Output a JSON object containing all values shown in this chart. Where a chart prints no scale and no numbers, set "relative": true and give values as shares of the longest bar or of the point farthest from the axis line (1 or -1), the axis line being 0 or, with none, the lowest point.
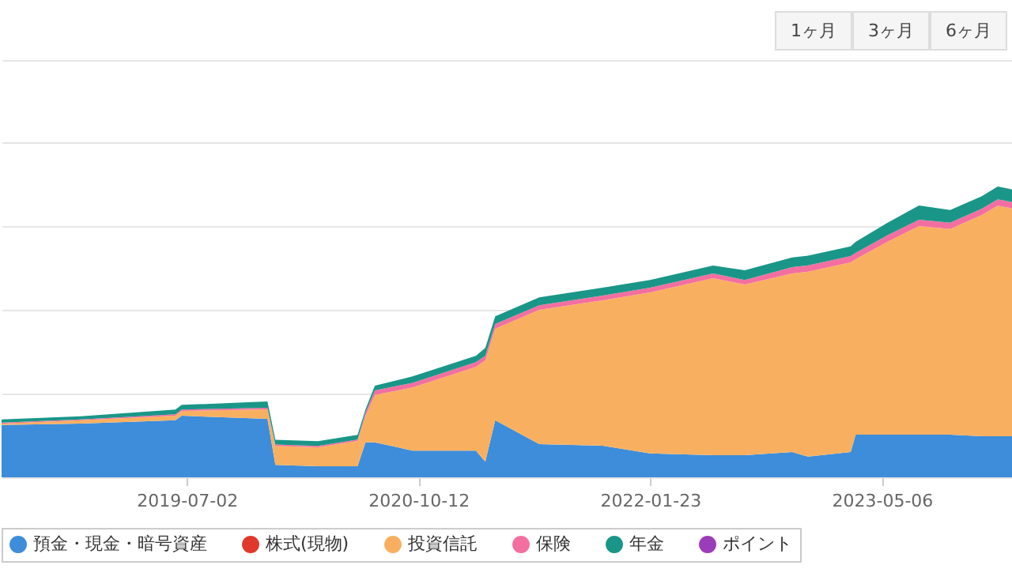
{
  "chart_data": {
    "type": "area",
    "stacked": true,
    "relative": true,
    "grid": "y",
    "legend": "bottom",
    "marker": "none",
    "annotations": [
      "1ヶ月",
      "3ヶ月",
      "6ヶ月"
    ],
    "x": [
      "2018-06-23",
      "2018-11-30",
      "2019-06-09",
      "2019-06-22",
      "2019-12-12",
      "2019-12-28",
      "2020-03-23",
      "2020-06-11",
      "2020-06-27",
      "2020-07-16",
      "2020-09-30",
      "2021-02-05",
      "2021-02-24",
      "2021-03-16",
      "2021-06-13",
      "2021-10-19",
      "2022-01-23",
      "2022-05-30",
      "2022-08-02",
      "2022-11-06",
      "2022-12-08",
      "2023-03-04",
      "2023-03-14",
      "2023-05-17",
      "2023-07-20",
      "2023-09-21",
      "2023-11-24",
      "2023-12-26",
      "2024-01-27"
    ],
    "xlim": [
      "2018-06-23",
      "2024-01-27"
    ],
    "xticks": [
      "2019-07-02",
      "2020-10-12",
      "2022-01-23",
      "2023-05-06"
    ],
    "series": [
      {
        "name": "預金・現金・暗号資産",
        "color": "#3d8ddb",
        "values": [
          0.18,
          0.185,
          0.196,
          0.212,
          0.201,
          0.043,
          0.038,
          0.038,
          0.12,
          0.12,
          0.092,
          0.092,
          0.054,
          0.196,
          0.114,
          0.109,
          0.082,
          0.076,
          0.076,
          0.087,
          0.071,
          0.087,
          0.147,
          0.147,
          0.147,
          0.147,
          0.141,
          0.141,
          0.141
        ]
      },
      {
        "name": "株式(現物)",
        "color": "#e0392b",
        "values": [
          null,
          null,
          null,
          null,
          null,
          null,
          null,
          null,
          null,
          null,
          null,
          null,
          null,
          null,
          null,
          null,
          null,
          null,
          null,
          null,
          null,
          null,
          null,
          null,
          null,
          null,
          null,
          null,
          null
        ]
      },
      {
        "name": "投資信託",
        "color": "#f8b060",
        "values": [
          0.005,
          0.011,
          0.016,
          0.016,
          0.033,
          0.065,
          0.065,
          0.087,
          0.092,
          0.163,
          0.217,
          0.288,
          0.348,
          0.315,
          0.462,
          0.5,
          0.554,
          0.609,
          0.587,
          0.614,
          0.636,
          0.652,
          0.603,
          0.663,
          0.717,
          0.707,
          0.761,
          0.793,
          0.783
        ]
      },
      {
        "name": "保険",
        "color": "#f36fa0",
        "values": [
          0.003,
          0.003,
          0.005,
          0.005,
          0.005,
          0.005,
          0.005,
          0.005,
          0.011,
          0.016,
          0.016,
          0.016,
          0.016,
          0.016,
          0.016,
          0.016,
          0.016,
          0.016,
          0.016,
          0.022,
          0.022,
          0.022,
          0.022,
          0.022,
          0.022,
          0.022,
          0.022,
          0.022,
          0.022
        ]
      },
      {
        "name": "年金",
        "color": "#1a9688",
        "values": [
          0.011,
          0.011,
          0.016,
          0.016,
          0.022,
          0.016,
          0.016,
          0.016,
          0.011,
          0.016,
          0.022,
          0.022,
          0.027,
          0.027,
          0.027,
          0.027,
          0.027,
          0.027,
          0.033,
          0.033,
          0.033,
          0.033,
          0.038,
          0.043,
          0.049,
          0.043,
          0.043,
          0.044,
          0.043
        ]
      },
      {
        "name": "ポイント",
        "color": "#9b3cb8",
        "values": [
          null,
          null,
          null,
          null,
          null,
          null,
          null,
          null,
          null,
          null,
          null,
          null,
          null,
          null,
          null,
          null,
          null,
          null,
          null,
          null,
          null,
          null,
          null,
          null,
          null,
          null,
          null,
          null,
          null
        ]
      }
    ]
  }
}
